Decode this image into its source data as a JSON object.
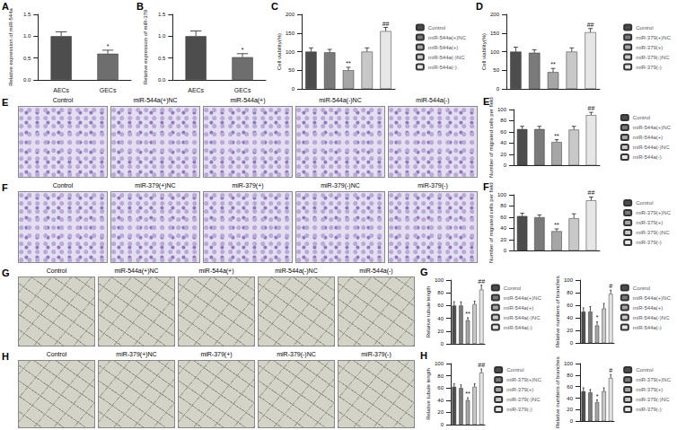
{
  "chart_data": [
    {
      "panel": "A",
      "type": "bar",
      "categories": [
        "AECs",
        "GECs"
      ],
      "values": [
        1.0,
        0.6
      ],
      "errors": [
        0.1,
        0.08
      ],
      "significance": [
        null,
        "*"
      ],
      "colors": [
        "#4d4d4d",
        "#6e6e6e"
      ],
      "y_label": "Relative expression of miR-544a",
      "ylim": [
        0,
        1.5
      ],
      "yticks": [
        {
          "value": 0,
          "label": "0.0"
        },
        {
          "value": 0.5,
          "label": "0.5"
        },
        {
          "value": 1.0,
          "label": "1.0"
        },
        {
          "value": 1.5,
          "label": "1.5"
        }
      ],
      "grid": false
    },
    {
      "panel": "B",
      "type": "bar",
      "categories": [
        "AECs",
        "GECs"
      ],
      "values": [
        1.0,
        0.52
      ],
      "errors": [
        0.12,
        0.08
      ],
      "significance": [
        null,
        "*"
      ],
      "colors": [
        "#4d4d4d",
        "#6e6e6e"
      ],
      "y_label": "Relative expression of miR-379",
      "ylim": [
        0,
        1.5
      ],
      "yticks": [
        {
          "value": 0,
          "label": "0.0"
        },
        {
          "value": 0.5,
          "label": "0.5"
        },
        {
          "value": 1.0,
          "label": "1.0"
        },
        {
          "value": 1.5,
          "label": "1.5"
        }
      ],
      "grid": false
    },
    {
      "panel": "C",
      "type": "bar",
      "categories": [
        "Control",
        "miR-544a(+)NC",
        "miR-544a(+)",
        "miR-544a(-)NC",
        "miR-544a(-)"
      ],
      "values": [
        100,
        98,
        50,
        100,
        155
      ],
      "errors": [
        10,
        8,
        8,
        10,
        10
      ],
      "significance": [
        null,
        null,
        "**",
        null,
        "##"
      ],
      "colors": [
        "#4d4d4d",
        "#7a7a7a",
        "#a6a6a6",
        "#c8c8c8",
        "#e6e6e6"
      ],
      "y_label": "Cell viability(%)",
      "ylim": [
        0,
        200
      ],
      "yticks": [
        0,
        50,
        100,
        150,
        200
      ],
      "grid": false,
      "legend": "right",
      "tick_labels": "y"
    },
    {
      "panel": "D",
      "type": "bar",
      "categories": [
        "Control",
        "miR-379(+)NC",
        "miR-379(+)",
        "miR-379(-)NC",
        "miR-379(-)"
      ],
      "values": [
        100,
        97,
        45,
        100,
        152
      ],
      "errors": [
        12,
        8,
        10,
        10,
        10
      ],
      "significance": [
        null,
        null,
        "**",
        null,
        "##"
      ],
      "colors": [
        "#4d4d4d",
        "#7a7a7a",
        "#a6a6a6",
        "#c8c8c8",
        "#e6e6e6"
      ],
      "y_label": "Cell viability(%)",
      "ylim": [
        0,
        200
      ],
      "yticks": [
        0,
        50,
        100,
        150,
        200
      ],
      "grid": false,
      "legend": "right",
      "tick_labels": "y"
    },
    {
      "panel": "E",
      "type": "bar",
      "categories": [
        "Control",
        "miR-544a(+)NC",
        "miR-544a(+)",
        "miR-544a(-)NC",
        "miR-544a(-)"
      ],
      "values": [
        65,
        65,
        42,
        64,
        90
      ],
      "errors": [
        5,
        5,
        4,
        6,
        5
      ],
      "significance": [
        null,
        null,
        "**",
        null,
        "##"
      ],
      "colors": [
        "#4d4d4d",
        "#7a7a7a",
        "#a6a6a6",
        "#c8c8c8",
        "#e6e6e6"
      ],
      "y_label": "Number of migrated cells per field",
      "ylim": [
        0,
        100
      ],
      "yticks": [
        0,
        20,
        40,
        60,
        80,
        100
      ],
      "grid": false,
      "legend": "right",
      "tick_labels": "y"
    },
    {
      "panel": "F",
      "type": "bar",
      "categories": [
        "Control",
        "miR-379(+)NC",
        "miR-379(+)",
        "miR-379(-)NC",
        "miR-379(-)"
      ],
      "values": [
        62,
        60,
        35,
        58,
        90
      ],
      "errors": [
        5,
        4,
        4,
        8,
        6
      ],
      "significance": [
        null,
        null,
        "**",
        null,
        "##"
      ],
      "colors": [
        "#4d4d4d",
        "#7a7a7a",
        "#a6a6a6",
        "#c8c8c8",
        "#e6e6e6"
      ],
      "y_label": "Number of migrated cells per field",
      "ylim": [
        0,
        100
      ],
      "yticks": [
        0,
        20,
        40,
        60,
        80,
        100
      ],
      "grid": false,
      "legend": "right",
      "tick_labels": "y"
    },
    {
      "panel": "G",
      "type": "bar",
      "categories": [
        "Control",
        "miR-544a(+)NC",
        "miR-544a(+)",
        "miR-544a(-)NC",
        "miR-544a(-)"
      ],
      "values": [
        60,
        60,
        37,
        62,
        85
      ],
      "errors": [
        6,
        6,
        4,
        5,
        7
      ],
      "significance": [
        null,
        null,
        "**",
        null,
        "##"
      ],
      "colors": [
        "#4d4d4d",
        "#7a7a7a",
        "#a6a6a6",
        "#c8c8c8",
        "#e6e6e6"
      ],
      "y_label": "Relative tubule length",
      "ylim": [
        0,
        100
      ],
      "yticks": [
        0,
        20,
        40,
        60,
        80,
        100
      ],
      "grid": false,
      "legend": "right",
      "tick_labels": "y"
    },
    {
      "panel": null,
      "type": "bar",
      "categories": [
        "Control",
        "miR-544a(+)NC",
        "miR-544a(+)",
        "miR-544a(-)NC",
        "miR-544a(-)"
      ],
      "values": [
        50,
        50,
        28,
        55,
        78
      ],
      "errors": [
        6,
        8,
        6,
        8,
        6
      ],
      "significance": [
        null,
        null,
        "*",
        null,
        "#"
      ],
      "colors": [
        "#4d4d4d",
        "#7a7a7a",
        "#a6a6a6",
        "#c8c8c8",
        "#e6e6e6"
      ],
      "y_label": "Relative numbers of branches",
      "ylim": [
        0,
        100
      ],
      "yticks": [
        0,
        20,
        40,
        60,
        80,
        100
      ],
      "grid": false,
      "legend": "right",
      "tick_labels": "y"
    },
    {
      "panel": "H",
      "type": "bar",
      "categories": [
        "Control",
        "miR-379(+)NC",
        "miR-379(+)",
        "miR-379(-)NC",
        "miR-379(-)"
      ],
      "values": [
        62,
        60,
        40,
        62,
        85
      ],
      "errors": [
        5,
        5,
        4,
        5,
        6
      ],
      "significance": [
        null,
        null,
        "**",
        null,
        "##"
      ],
      "colors": [
        "#4d4d4d",
        "#7a7a7a",
        "#a6a6a6",
        "#c8c8c8",
        "#e6e6e6"
      ],
      "y_label": "Relative tubule length",
      "ylim": [
        0,
        100
      ],
      "yticks": [
        0,
        20,
        40,
        60,
        80,
        100
      ],
      "grid": false,
      "legend": "right",
      "tick_labels": "y"
    },
    {
      "panel": null,
      "type": "bar",
      "categories": [
        "Control",
        "miR-379(+)NC",
        "miR-379(+)",
        "miR-379(-)NC",
        "miR-379(-)"
      ],
      "values": [
        52,
        50,
        33,
        52,
        75
      ],
      "errors": [
        6,
        5,
        4,
        6,
        6
      ],
      "significance": [
        null,
        null,
        "*",
        null,
        "#"
      ],
      "colors": [
        "#4d4d4d",
        "#7a7a7a",
        "#a6a6a6",
        "#c8c8c8",
        "#e6e6e6"
      ],
      "y_label": "Relative numbers of branches",
      "ylim": [
        0,
        100
      ],
      "yticks": [
        0,
        20,
        40,
        60,
        80,
        100
      ],
      "grid": false,
      "legend": "right",
      "tick_labels": "y"
    }
  ],
  "image_rows": [
    {
      "panel": "E",
      "kind": "migration",
      "titles": [
        "Control",
        "miR-544a(+)NC",
        "miR-544a(+)",
        "miR-544a(-)NC",
        "miR-544a(-)"
      ]
    },
    {
      "panel": "F",
      "kind": "migration",
      "titles": [
        "Control",
        "miR-379(+)NC",
        "miR-379(+)",
        "miR-379(-)NC",
        "miR-379(-)"
      ]
    },
    {
      "panel": "G",
      "kind": "tube",
      "titles": [
        "Control",
        "miR-544a(+)NC",
        "miR-544a(+)",
        "miR-544a(-)NC",
        "miR-544a(-)"
      ]
    },
    {
      "panel": "H",
      "kind": "tube",
      "titles": [
        "Control",
        "miR-379(+)NC",
        "miR-379(+)",
        "miR-379(-)NC",
        "miR-379(-)"
      ]
    }
  ]
}
